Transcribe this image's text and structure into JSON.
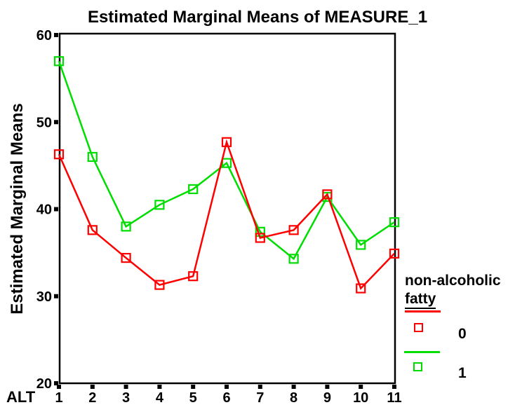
{
  "title": "Estimated Marginal Means of MEASURE_1",
  "axes": {
    "y_label": "Estimated Marginal Means",
    "x_label": "ALT"
  },
  "legend": {
    "title_line1": "non-alcoholic",
    "title_line2": "fatty",
    "entries": [
      {
        "label": "0",
        "color": "#ff0000"
      },
      {
        "label": "1",
        "color": "#00dd00"
      }
    ]
  },
  "chart_data": {
    "type": "line",
    "title": "Estimated Marginal Means of MEASURE_1",
    "xlabel": "ALT",
    "ylabel": "Estimated Marginal Means",
    "categories": [
      "1",
      "2",
      "3",
      "4",
      "5",
      "6",
      "7",
      "8",
      "9",
      "10",
      "11"
    ],
    "series": [
      {
        "name": "0",
        "color": "#ff0000",
        "values": [
          46.3,
          37.6,
          34.4,
          31.3,
          32.3,
          47.7,
          36.7,
          37.6,
          41.7,
          30.9,
          34.9
        ]
      },
      {
        "name": "1",
        "color": "#00dd00",
        "values": [
          57.0,
          46.0,
          38.0,
          40.5,
          42.3,
          45.3,
          37.4,
          34.3,
          41.4,
          35.9,
          38.5
        ]
      }
    ],
    "ylim": [
      20,
      60
    ],
    "yticks": [
      20,
      30,
      40,
      50,
      60
    ],
    "grid": false,
    "legend_position": "right",
    "legend_title": "non-alcoholic fatty",
    "marker": "open-square",
    "frame": "full-box"
  }
}
